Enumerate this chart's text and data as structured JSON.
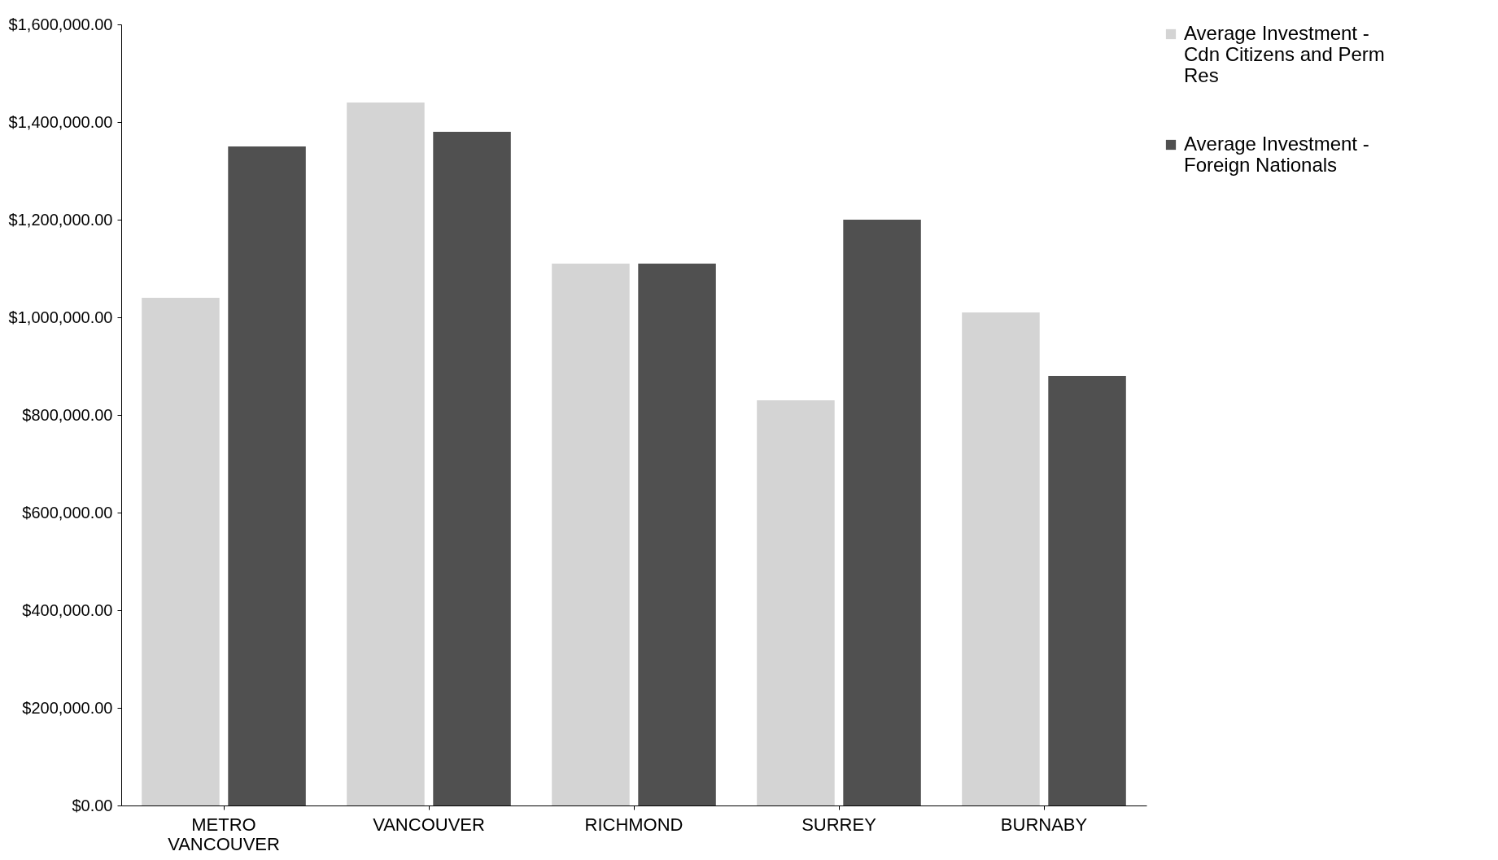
{
  "chart_data": {
    "type": "bar",
    "categories": [
      "METRO VANCOUVER",
      "VANCOUVER",
      "RICHMOND",
      "SURREY",
      "BURNABY"
    ],
    "series": [
      {
        "name": "Average Investment - Cdn Citizens and Perm Res",
        "color": "#d4d4d4",
        "values": [
          1040000,
          1440000,
          1110000,
          830000,
          1010000
        ]
      },
      {
        "name": "Average Investment - Foreign Nationals",
        "color": "#505050",
        "values": [
          1350000,
          1380000,
          1110000,
          1200000,
          880000
        ]
      }
    ],
    "ylim": [
      0,
      1600000
    ],
    "yticks": [
      {
        "value": 0,
        "label": "$0.00"
      },
      {
        "value": 200000,
        "label": "$200,000.00"
      },
      {
        "value": 400000,
        "label": "$400,000.00"
      },
      {
        "value": 600000,
        "label": "$600,000.00"
      },
      {
        "value": 800000,
        "label": "$800,000.00"
      },
      {
        "value": 1000000,
        "label": "$1,000,000.00"
      },
      {
        "value": 1200000,
        "label": "$1,200,000.00"
      },
      {
        "value": 1400000,
        "label": "$1,400,000.00"
      },
      {
        "value": 1600000,
        "label": "$1,600,000.00"
      }
    ],
    "grid": false,
    "legend": "right"
  }
}
